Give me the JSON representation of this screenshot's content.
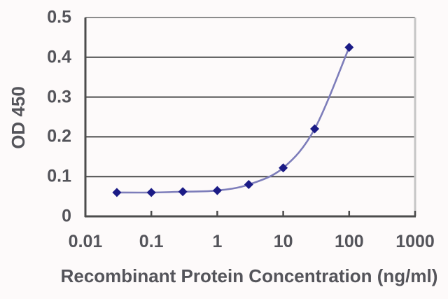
{
  "chart_data": {
    "type": "line",
    "title": "",
    "xlabel": "Recombinant Protein Concentration (ng/ml)",
    "ylabel": "OD 450",
    "x_scale": "log",
    "xlim": [
      0.01,
      1000
    ],
    "ylim": [
      0,
      0.5
    ],
    "grid": true,
    "legend": false,
    "x_ticks": [
      0.01,
      0.1,
      1,
      10,
      100,
      1000
    ],
    "x_tick_labels": [
      "0.01",
      "0.1",
      "1",
      "10",
      "100",
      "1000"
    ],
    "y_ticks": [
      0,
      0.1,
      0.2,
      0.3,
      0.4,
      0.5
    ],
    "y_tick_labels": [
      "0",
      "0.1",
      "0.2",
      "0.3",
      "0.4",
      "0.5"
    ],
    "series": [
      {
        "name": "OD 450 signal",
        "x": [
          0.03,
          0.1,
          0.3,
          1,
          3,
          10,
          30,
          100
        ],
        "y": [
          0.06,
          0.06,
          0.062,
          0.065,
          0.08,
          0.122,
          0.22,
          0.425
        ],
        "marker": "diamond"
      }
    ],
    "colors": {
      "line": "#7d7dba",
      "marker": "#1b1b86",
      "gridline": "#4c4c4c",
      "axis": "#4c4c4c",
      "border_top": "#8c8c8c",
      "border_right": "#c6c6c6",
      "text": "#54545a",
      "background": "#fdfafa"
    }
  }
}
